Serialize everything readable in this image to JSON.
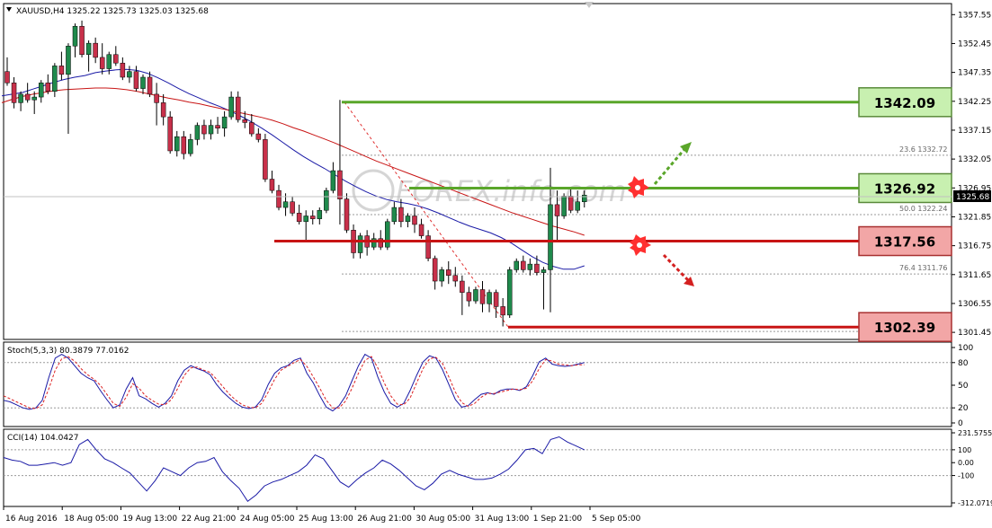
{
  "window": {
    "symbol_line": "XAUUSD,H4  1325.22 1325.73 1325.03 1325.68",
    "watermark": "FOREX.info.com",
    "current_price_label": "1325.68"
  },
  "chart_data": [
    {
      "type": "candlestick",
      "title": "XAUUSD,H4",
      "ohlc_header": {
        "open": 1325.22,
        "high": 1325.73,
        "low": 1325.03,
        "close": 1325.68
      },
      "y_ticks": [
        "1357.55",
        "1352.45",
        "1347.35",
        "1342.25",
        "1337.15",
        "1332.05",
        "1326.95",
        "1321.85",
        "1316.75",
        "1311.65",
        "1306.55",
        "1301.45"
      ],
      "ylim": [
        1300.2,
        1359.5
      ],
      "x_labels": [
        "16 Aug 2016",
        "18 Aug 05:00",
        "19 Aug 13:00",
        "22 Aug 21:00",
        "24 Aug 05:00",
        "25 Aug 13:00",
        "26 Aug 21:00",
        "30 Aug 05:00",
        "31 Aug 13:00",
        "1 Sep 21:00",
        "5 Sep 05:00"
      ],
      "candles": [
        [
          1347.5,
          1350.0,
          1345.0,
          1345.5
        ],
        [
          1345.5,
          1346.5,
          1341.0,
          1342.0
        ],
        [
          1342.0,
          1344.0,
          1340.5,
          1343.5
        ],
        [
          1343.5,
          1345.5,
          1342.0,
          1342.5
        ],
        [
          1342.5,
          1344.0,
          1340.0,
          1343.0
        ],
        [
          1343.0,
          1346.0,
          1342.0,
          1345.5
        ],
        [
          1345.5,
          1347.0,
          1343.5,
          1344.0
        ],
        [
          1344.0,
          1349.0,
          1343.0,
          1348.5
        ],
        [
          1348.5,
          1351.0,
          1346.0,
          1347.0
        ],
        [
          1347.0,
          1352.5,
          1336.5,
          1352.0
        ],
        [
          1352.0,
          1356.0,
          1350.0,
          1355.5
        ],
        [
          1355.5,
          1356.5,
          1350.0,
          1350.5
        ],
        [
          1350.5,
          1353.0,
          1347.5,
          1352.5
        ],
        [
          1352.5,
          1353.5,
          1349.0,
          1350.0
        ],
        [
          1350.0,
          1352.5,
          1347.0,
          1348.0
        ],
        [
          1348.0,
          1351.0,
          1347.0,
          1350.5
        ],
        [
          1350.5,
          1352.0,
          1348.5,
          1349.0
        ],
        [
          1349.0,
          1350.0,
          1346.0,
          1346.5
        ],
        [
          1346.5,
          1348.5,
          1345.5,
          1347.5
        ],
        [
          1347.5,
          1348.5,
          1344.0,
          1344.5
        ],
        [
          1344.5,
          1347.0,
          1343.5,
          1346.5
        ],
        [
          1346.5,
          1347.5,
          1343.0,
          1343.5
        ],
        [
          1343.5,
          1345.5,
          1338.0,
          1342.0
        ],
        [
          1342.0,
          1343.5,
          1338.0,
          1339.5
        ],
        [
          1339.5,
          1340.5,
          1333.0,
          1333.5
        ],
        [
          1333.5,
          1337.0,
          1332.5,
          1336.0
        ],
        [
          1336.0,
          1337.0,
          1332.0,
          1333.0
        ],
        [
          1333.0,
          1336.5,
          1332.5,
          1335.5
        ],
        [
          1335.5,
          1338.5,
          1334.5,
          1338.0
        ],
        [
          1338.0,
          1339.0,
          1335.5,
          1336.5
        ],
        [
          1336.5,
          1339.0,
          1335.5,
          1338.0
        ],
        [
          1338.0,
          1339.5,
          1336.5,
          1337.5
        ],
        [
          1337.5,
          1340.5,
          1336.0,
          1339.5
        ],
        [
          1339.5,
          1344.0,
          1339.0,
          1343.0
        ],
        [
          1343.0,
          1344.0,
          1338.5,
          1339.0
        ],
        [
          1339.0,
          1340.5,
          1337.5,
          1338.5
        ],
        [
          1338.5,
          1340.0,
          1336.0,
          1336.5
        ],
        [
          1336.5,
          1337.5,
          1335.0,
          1335.5
        ],
        [
          1335.5,
          1336.5,
          1328.0,
          1328.5
        ],
        [
          1328.5,
          1330.0,
          1326.0,
          1326.5
        ],
        [
          1326.5,
          1327.5,
          1323.0,
          1323.5
        ],
        [
          1323.5,
          1326.0,
          1322.0,
          1324.5
        ],
        [
          1324.5,
          1325.5,
          1322.0,
          1322.5
        ],
        [
          1322.5,
          1324.0,
          1320.5,
          1321.0
        ],
        [
          1321.0,
          1323.0,
          1317.5,
          1322.0
        ],
        [
          1322.0,
          1323.0,
          1320.5,
          1321.5
        ],
        [
          1321.5,
          1323.5,
          1320.5,
          1323.0
        ],
        [
          1323.0,
          1327.0,
          1322.5,
          1326.5
        ],
        [
          1326.5,
          1331.5,
          1326.0,
          1330.0
        ],
        [
          1330.0,
          1342.5,
          1320.5,
          1325.0
        ],
        [
          1325.0,
          1326.0,
          1319.0,
          1319.5
        ],
        [
          1319.5,
          1320.5,
          1314.5,
          1315.5
        ],
        [
          1315.5,
          1319.0,
          1314.5,
          1318.5
        ],
        [
          1318.5,
          1319.5,
          1315.0,
          1316.5
        ],
        [
          1316.5,
          1319.0,
          1316.0,
          1318.0
        ],
        [
          1318.0,
          1319.5,
          1316.0,
          1316.5
        ],
        [
          1316.5,
          1321.5,
          1316.0,
          1321.0
        ],
        [
          1321.0,
          1324.5,
          1320.5,
          1323.5
        ],
        [
          1323.5,
          1325.0,
          1320.0,
          1321.0
        ],
        [
          1321.0,
          1322.5,
          1320.0,
          1322.0
        ],
        [
          1322.0,
          1323.5,
          1319.0,
          1320.5
        ],
        [
          1320.5,
          1321.5,
          1318.0,
          1318.5
        ],
        [
          1318.5,
          1319.5,
          1314.0,
          1314.5
        ],
        [
          1314.5,
          1315.0,
          1309.0,
          1310.5
        ],
        [
          1310.5,
          1313.0,
          1309.5,
          1312.5
        ],
        [
          1312.5,
          1314.0,
          1310.0,
          1311.5
        ],
        [
          1311.5,
          1313.0,
          1309.5,
          1310.5
        ],
        [
          1310.5,
          1311.5,
          1304.5,
          1308.5
        ],
        [
          1308.5,
          1309.5,
          1306.0,
          1307.0
        ],
        [
          1307.0,
          1309.5,
          1306.5,
          1309.0
        ],
        [
          1309.0,
          1310.5,
          1305.0,
          1306.5
        ],
        [
          1306.5,
          1309.0,
          1305.0,
          1308.5
        ],
        [
          1308.5,
          1309.0,
          1304.0,
          1306.0
        ],
        [
          1306.0,
          1307.5,
          1302.5,
          1304.5
        ],
        [
          1304.5,
          1313.0,
          1304.0,
          1312.5
        ],
        [
          1312.5,
          1314.5,
          1312.0,
          1314.0
        ],
        [
          1314.0,
          1315.0,
          1312.0,
          1312.5
        ],
        [
          1312.5,
          1314.5,
          1311.5,
          1313.5
        ],
        [
          1313.5,
          1315.0,
          1311.5,
          1312.0
        ],
        [
          1312.0,
          1313.0,
          1305.5,
          1312.5
        ],
        [
          1312.5,
          1330.5,
          1305.0,
          1324.0
        ],
        [
          1324.0,
          1326.5,
          1317.5,
          1322.0
        ],
        [
          1322.0,
          1326.0,
          1321.5,
          1325.5
        ],
        [
          1325.5,
          1327.0,
          1322.5,
          1323.0
        ],
        [
          1323.0,
          1326.5,
          1322.5,
          1324.5
        ],
        [
          1324.5,
          1326.5,
          1323.5,
          1325.68
        ]
      ],
      "series": [
        {
          "name": "",
          "color": "#1a1aa6",
          "values": [
            1343.2,
            1343.5,
            1343.8,
            1344.4,
            1345.0,
            1345.6,
            1346.1,
            1346.5,
            1346.8,
            1347.3,
            1347.6,
            1347.8,
            1347.9,
            1347.7,
            1347.2,
            1346.4,
            1345.5,
            1344.5,
            1343.6,
            1342.8,
            1342.0,
            1341.3,
            1340.5,
            1339.6,
            1338.6,
            1337.5,
            1336.3,
            1335.0,
            1333.7,
            1332.5,
            1331.4,
            1330.4,
            1329.3,
            1328.2,
            1327.2,
            1326.3,
            1325.5,
            1324.9,
            1324.5,
            1324.2,
            1323.8,
            1323.2,
            1322.5,
            1321.7,
            1320.9,
            1320.2,
            1319.6,
            1319.0,
            1318.2,
            1317.2,
            1316.0,
            1314.8,
            1313.8,
            1313.1,
            1312.6,
            1312.6,
            1313.2
          ]
        },
        {
          "name": "",
          "color": "#c81414",
          "values": [
            1342.0,
            1342.6,
            1343.1,
            1343.5,
            1343.8,
            1344.1,
            1344.3,
            1344.4,
            1344.5,
            1344.6,
            1344.6,
            1344.5,
            1344.3,
            1344.0,
            1343.6,
            1343.2,
            1342.8,
            1342.5,
            1342.1,
            1341.8,
            1341.4,
            1341.0,
            1340.6,
            1340.2,
            1339.8,
            1339.4,
            1338.9,
            1338.3,
            1337.6,
            1337.0,
            1336.3,
            1335.6,
            1334.9,
            1334.1,
            1333.3,
            1332.5,
            1331.7,
            1331.0,
            1330.3,
            1329.6,
            1328.9,
            1328.2,
            1327.5,
            1326.8,
            1326.1,
            1325.4,
            1324.7,
            1324.0,
            1323.3,
            1322.6,
            1322.0,
            1321.4,
            1320.8,
            1320.2,
            1319.7,
            1319.2,
            1318.6
          ]
        }
      ],
      "fibonacci": {
        "levels": [
          {
            "label": "23.6",
            "value": "1332.72"
          },
          {
            "label": "50.0",
            "value": "1322.24"
          },
          {
            "label": "76.4",
            "value": "1311.76"
          }
        ]
      },
      "levels": [
        {
          "value": 1342.09,
          "label": "1342.09",
          "kind": "resistance"
        },
        {
          "value": 1326.92,
          "label": "1326.92",
          "kind": "resistance"
        },
        {
          "value": 1317.56,
          "label": "1317.56",
          "kind": "support"
        },
        {
          "value": 1302.39,
          "label": "1302.39",
          "kind": "support"
        }
      ]
    },
    {
      "type": "line",
      "title": "Stoch(5,3,3) 80.3879 77.0162",
      "ylim": [
        0,
        100
      ],
      "y_ticks": [
        "100",
        "80",
        "50",
        "20",
        "0"
      ],
      "series": [
        {
          "name": "",
          "color": "#1a1aa6",
          "values": [
            30,
            28,
            24,
            20,
            18,
            20,
            30,
            60,
            86,
            91,
            86,
            76,
            66,
            60,
            56,
            43,
            31,
            20,
            24,
            45,
            60,
            36,
            32,
            26,
            21,
            26,
            36,
            56,
            70,
            76,
            72,
            69,
            64,
            51,
            41,
            33,
            26,
            21,
            19,
            21,
            31,
            51,
            66,
            73,
            76,
            83,
            86,
            66,
            53,
            36,
            21,
            16,
            23,
            36,
            56,
            76,
            91,
            86,
            61,
            41,
            26,
            21,
            26,
            43,
            63,
            81,
            89,
            86,
            71,
            51,
            31,
            21,
            23,
            31,
            38,
            40,
            38,
            43,
            45,
            45,
            43,
            48,
            63,
            81,
            86,
            78,
            76,
            75,
            76,
            78,
            80
          ]
        },
        {
          "name": "",
          "color": "#dd2222",
          "values": [
            36,
            32,
            28,
            24,
            20,
            19,
            24,
            45,
            70,
            85,
            88,
            82,
            72,
            64,
            58,
            50,
            38,
            26,
            22,
            34,
            52,
            46,
            36,
            30,
            25,
            24,
            31,
            46,
            63,
            73,
            74,
            70,
            67,
            58,
            48,
            38,
            30,
            24,
            21,
            20,
            26,
            41,
            58,
            70,
            75,
            80,
            84,
            75,
            61,
            46,
            30,
            20,
            20,
            29,
            46,
            66,
            83,
            88,
            73,
            53,
            36,
            25,
            24,
            33,
            53,
            72,
            85,
            87,
            79,
            61,
            41,
            27,
            22,
            26,
            34,
            39,
            39,
            41,
            43,
            45,
            44,
            46,
            56,
            72,
            84,
            82,
            78,
            77,
            76,
            77,
            77
          ]
        }
      ]
    },
    {
      "type": "line",
      "title": "CCI(14) 104.0427",
      "ylim": [
        -312.0719,
        231.5755
      ],
      "y_ticks": [
        "231.5755",
        "100",
        "0.00",
        "-100",
        "-312.0719"
      ],
      "series": [
        {
          "name": "",
          "color": "#1a1aa6",
          "values": [
            40,
            20,
            10,
            -20,
            -20,
            -10,
            0,
            -20,
            0,
            140,
            180,
            100,
            30,
            0,
            -40,
            -80,
            -150,
            -220,
            -140,
            -40,
            -70,
            -100,
            -40,
            0,
            10,
            40,
            -70,
            -140,
            -200,
            -300,
            -250,
            -180,
            -150,
            -130,
            -100,
            -70,
            -20,
            60,
            30,
            -60,
            -150,
            -190,
            -130,
            -80,
            -40,
            20,
            -10,
            -60,
            -120,
            -180,
            -210,
            -160,
            -90,
            -60,
            -90,
            -110,
            -130,
            -130,
            -120,
            -90,
            -50,
            20,
            100,
            110,
            70,
            180,
            200,
            160,
            130,
            100
          ]
        }
      ]
    }
  ]
}
